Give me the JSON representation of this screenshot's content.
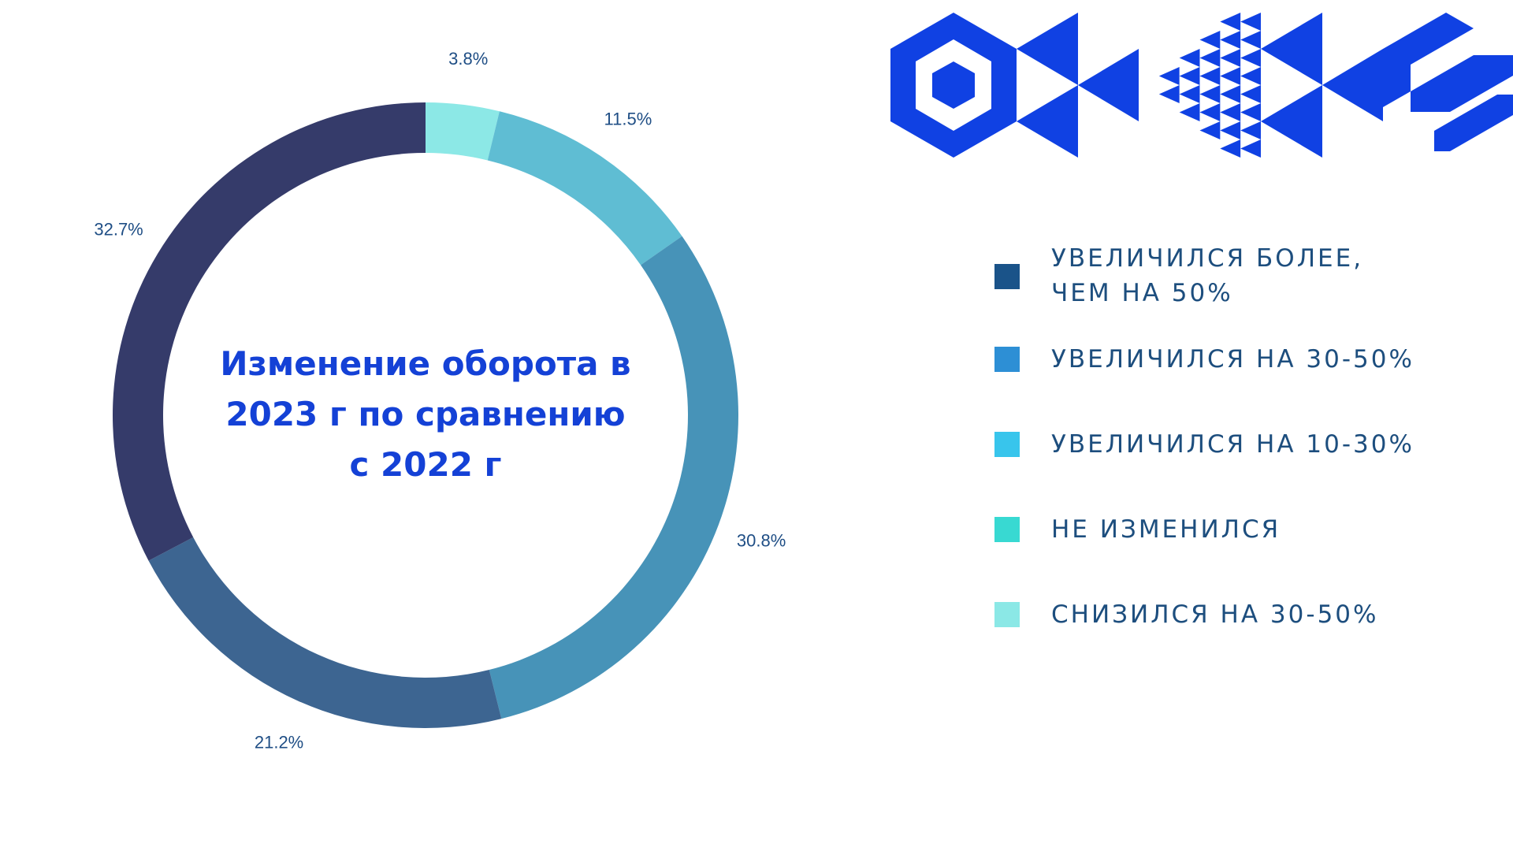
{
  "chart_data": {
    "type": "pie",
    "donut": true,
    "title_lines": [
      "Изменение оборота в",
      "2023 г по сравнению",
      "с 2022 г"
    ],
    "slices": [
      {
        "label_lines": [
          "СНИЗИЛСЯ НА 30-50%"
        ],
        "value": 3.8,
        "value_label": "3.8%",
        "color": "#8ce8e6"
      },
      {
        "label_lines": [
          "НЕ ИЗМЕНИЛСЯ"
        ],
        "value": 11.5,
        "value_label": "11.5%",
        "color": "#5fbdd3"
      },
      {
        "label_lines": [
          "УВЕЛИЧИЛСЯ НА 10-30%"
        ],
        "value": 30.8,
        "value_label": "30.8%",
        "color": "#4793b8"
      },
      {
        "label_lines": [
          "УВЕЛИЧИЛСЯ НА 30-50%"
        ],
        "value": 21.2,
        "value_label": "21.2%",
        "color": "#3d6591"
      },
      {
        "label_lines": [
          "УВЕЛИЧИЛСЯ БОЛЕЕ,",
          "ЧЕМ НА 50%"
        ],
        "value": 32.7,
        "value_label": "32.7%",
        "color": "#353b6a"
      }
    ],
    "legend": [
      {
        "lines": [
          "УВЕЛИЧИЛСЯ БОЛЕЕ,",
          "ЧЕМ НА 50%"
        ],
        "color": "#1a5389"
      },
      {
        "lines": [
          "УВЕЛИЧИЛСЯ НА 30-50%"
        ],
        "color": "#2d8fd5"
      },
      {
        "lines": [
          "УВЕЛИЧИЛСЯ НА 10-30%"
        ],
        "color": "#38c5ec"
      },
      {
        "lines": [
          "НЕ ИЗМЕНИЛСЯ"
        ],
        "color": "#38d9d2"
      },
      {
        "lines": [
          "СНИЗИЛСЯ НА 30-50%"
        ],
        "color": "#8be8e6"
      }
    ],
    "legend_placement": "right",
    "start_angle": "top",
    "direction": "clockwise"
  },
  "colors": {
    "title": "#1441d6",
    "labels": "#1f4e85",
    "ornament": "#1041e3"
  },
  "ornament": {
    "icon": "geometric-pattern-icon"
  }
}
